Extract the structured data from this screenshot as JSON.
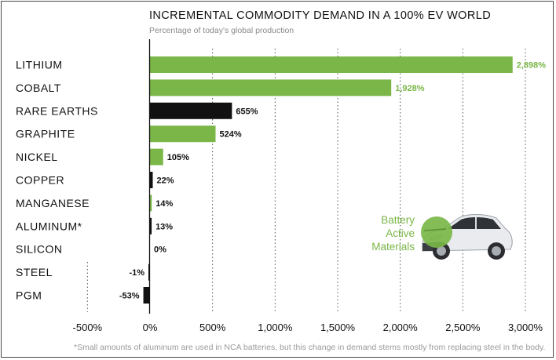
{
  "colors": {
    "green": "#7ab648",
    "black": "#111111",
    "grid": "#555555",
    "footnote": "#9a9a9a"
  },
  "legend": {
    "line1": "Battery",
    "line2": "Active",
    "line3": "Materials",
    "image_icon": "electric-car-icon"
  },
  "footnote": "*Small amounts of aluminum are used in NCA batteries, but this change in demand stems mostly from replacing steel in the body.",
  "chart_data": {
    "type": "bar",
    "orientation": "horizontal",
    "title": "INCREMENTAL COMMODITY DEMAND IN A 100% EV WORLD",
    "subtitle": "Percentage of today's global production",
    "xlabel": "",
    "ylabel": "",
    "xlim": [
      -500,
      3000
    ],
    "x_ticks": [
      -500,
      0,
      500,
      1000,
      1500,
      2000,
      2500,
      3000
    ],
    "x_tick_labels": [
      "-500%",
      "0%",
      "500%",
      "1,000%",
      "1,500%",
      "2,000%",
      "2,500%",
      "3,000%"
    ],
    "grid": "vertical dotted",
    "categories": [
      "LITHIUM",
      "COBALT",
      "RARE EARTHS",
      "GRAPHITE",
      "NICKEL",
      "COPPER",
      "MANGANESE",
      "ALUMINUM*",
      "SILICON",
      "STEEL",
      "PGM"
    ],
    "values": [
      2898,
      1928,
      655,
      524,
      105,
      22,
      14,
      13,
      0,
      -1,
      -53
    ],
    "value_labels": [
      "2,898%",
      "1,928%",
      "655%",
      "524%",
      "105%",
      "22%",
      "14%",
      "13%",
      "0%",
      "-1%",
      "-53%"
    ],
    "battery_active_material": [
      true,
      true,
      false,
      true,
      true,
      false,
      true,
      false,
      false,
      false,
      false
    ]
  }
}
